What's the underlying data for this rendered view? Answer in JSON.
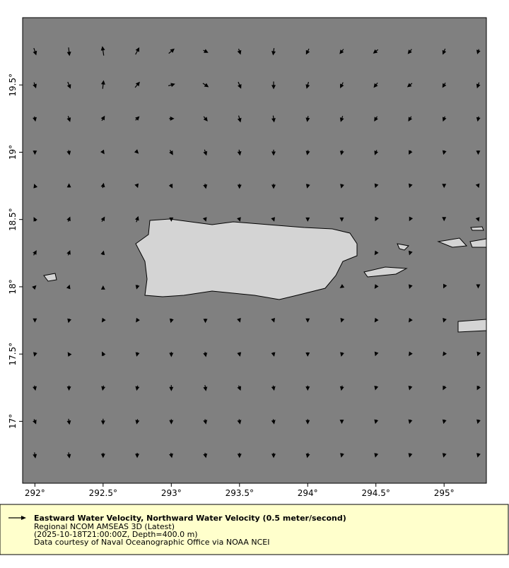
{
  "chart_data": {
    "type": "vector",
    "xlim": [
      291.91,
      295.31
    ],
    "ylim": [
      16.54,
      20.0
    ],
    "xticks": [
      {
        "value": 292,
        "label": "292°"
      },
      {
        "value": 292.5,
        "label": "292.5°"
      },
      {
        "value": 293,
        "label": "293°"
      },
      {
        "value": 293.5,
        "label": "293.5°"
      },
      {
        "value": 294,
        "label": "294°"
      },
      {
        "value": 294.5,
        "label": "294.5°"
      },
      {
        "value": 295,
        "label": "295°"
      }
    ],
    "yticks": [
      {
        "value": 17,
        "label": "17°"
      },
      {
        "value": 17.5,
        "label": "17.5°"
      },
      {
        "value": 18,
        "label": "18°"
      },
      {
        "value": 18.5,
        "label": "18.5°"
      },
      {
        "value": 19,
        "label": "19°"
      },
      {
        "value": 19.5,
        "label": "19.5°"
      }
    ],
    "color": "#000000",
    "vectors": {
      "lon": [
        292.0,
        292.25,
        292.5,
        292.75,
        293.0,
        293.25,
        293.5,
        293.75,
        294.0,
        294.25,
        294.5,
        294.75,
        295.0,
        295.25
      ],
      "lat": [
        19.75,
        19.5,
        19.25,
        19.0,
        18.75,
        18.5,
        18.25,
        18.0,
        17.75,
        17.5,
        17.25,
        17.0,
        16.75
      ],
      "u": [
        [
          0.05,
          0.02,
          -0.03,
          0.08,
          0.12,
          0.1,
          0.04,
          -0.02,
          -0.06,
          -0.08,
          -0.1,
          -0.08,
          -0.05,
          -0.03
        ],
        [
          0.04,
          0.06,
          0.02,
          0.1,
          0.14,
          0.12,
          0.06,
          0.0,
          -0.04,
          -0.06,
          -0.08,
          -0.1,
          -0.06,
          -0.04
        ],
        [
          0.02,
          0.04,
          0.06,
          0.08,
          0.1,
          0.08,
          0.04,
          0.02,
          -0.02,
          -0.04,
          -0.06,
          -0.06,
          -0.04,
          -0.02
        ],
        [
          0.0,
          0.02,
          0.04,
          0.04,
          0.06,
          0.04,
          0.02,
          0.0,
          -0.02,
          -0.02,
          -0.04,
          -0.04,
          -0.02,
          0.0
        ],
        [
          -0.02,
          0.0,
          0.02,
          0.02,
          0.04,
          0.02,
          0.0,
          0.0,
          -0.02,
          -0.02,
          -0.02,
          -0.02,
          0.0,
          0.02
        ],
        [
          -0.04,
          0.04,
          0.06,
          0.04,
          0.0,
          0.02,
          0.02,
          0.02,
          0.0,
          0.0,
          -0.02,
          -0.02,
          0.0,
          0.02
        ],
        [
          0.06,
          0.04,
          0.02,
          null,
          null,
          null,
          null,
          null,
          null,
          null,
          -0.04,
          -0.02,
          null,
          null
        ],
        [
          0.04,
          0.02,
          0.0,
          -0.02,
          null,
          null,
          null,
          null,
          null,
          -0.06,
          -0.04,
          -0.02,
          -0.02,
          0.0
        ],
        [
          0.0,
          -0.02,
          -0.04,
          -0.04,
          -0.02,
          0.0,
          0.02,
          0.02,
          0.0,
          -0.02,
          -0.04,
          -0.04,
          -0.02,
          null
        ],
        [
          -0.02,
          -0.04,
          -0.04,
          -0.02,
          0.0,
          0.02,
          0.02,
          0.02,
          0.0,
          -0.02,
          -0.02,
          -0.04,
          -0.04,
          -0.02
        ],
        [
          0.02,
          0.0,
          -0.02,
          -0.02,
          0.0,
          0.02,
          0.04,
          0.02,
          0.0,
          -0.02,
          -0.02,
          -0.02,
          -0.04,
          -0.04
        ],
        [
          0.04,
          0.02,
          0.0,
          -0.02,
          0.0,
          0.02,
          0.02,
          0.02,
          0.0,
          0.0,
          -0.02,
          -0.02,
          -0.02,
          -0.02
        ],
        [
          0.02,
          0.02,
          0.0,
          0.0,
          0.02,
          0.02,
          0.0,
          0.0,
          -0.02,
          -0.02,
          -0.02,
          -0.02,
          -0.02,
          -0.02
        ]
      ],
      "v": [
        [
          -0.15,
          -0.18,
          0.2,
          0.15,
          0.1,
          -0.05,
          -0.12,
          -0.15,
          -0.12,
          -0.1,
          -0.08,
          -0.1,
          -0.12,
          -0.1
        ],
        [
          -0.12,
          -0.14,
          0.18,
          0.12,
          0.04,
          -0.08,
          -0.14,
          -0.16,
          -0.14,
          -0.12,
          -0.1,
          -0.08,
          -0.1,
          -0.12
        ],
        [
          -0.1,
          -0.12,
          0.1,
          0.08,
          0.0,
          -0.1,
          -0.14,
          -0.14,
          -0.12,
          -0.12,
          -0.1,
          -0.1,
          -0.1,
          -0.1
        ],
        [
          -0.08,
          -0.1,
          -0.06,
          -0.04,
          -0.1,
          -0.12,
          -0.12,
          -0.12,
          -0.1,
          -0.1,
          -0.1,
          -0.08,
          -0.08,
          -0.08
        ],
        [
          0.06,
          0.08,
          0.1,
          -0.06,
          -0.08,
          -0.1,
          -0.1,
          -0.1,
          -0.08,
          -0.08,
          -0.06,
          -0.06,
          -0.06,
          -0.06
        ],
        [
          0.08,
          0.1,
          0.1,
          0.12,
          -0.06,
          -0.06,
          -0.06,
          -0.06,
          -0.06,
          -0.06,
          -0.04,
          -0.04,
          -0.04,
          -0.06
        ],
        [
          0.1,
          0.1,
          0.08,
          null,
          null,
          null,
          null,
          null,
          null,
          null,
          -0.06,
          -0.06,
          null,
          null
        ],
        [
          0.04,
          0.06,
          0.02,
          -0.08,
          null,
          null,
          null,
          null,
          null,
          -0.04,
          -0.06,
          -0.06,
          -0.04,
          -0.04
        ],
        [
          -0.06,
          -0.08,
          -0.06,
          -0.06,
          -0.08,
          -0.08,
          -0.06,
          -0.06,
          -0.06,
          -0.06,
          -0.06,
          -0.06,
          -0.06,
          null
        ],
        [
          -0.08,
          0.06,
          0.08,
          -0.08,
          -0.1,
          -0.1,
          -0.08,
          -0.08,
          -0.08,
          -0.08,
          -0.06,
          -0.06,
          -0.06,
          -0.06
        ],
        [
          -0.1,
          -0.1,
          -0.1,
          -0.1,
          -0.12,
          -0.12,
          -0.1,
          -0.1,
          -0.1,
          -0.1,
          -0.08,
          -0.08,
          -0.08,
          -0.08
        ],
        [
          -0.1,
          -0.12,
          -0.12,
          -0.1,
          -0.1,
          -0.1,
          -0.1,
          -0.1,
          -0.1,
          -0.08,
          -0.08,
          -0.08,
          -0.08,
          -0.08
        ],
        [
          -0.12,
          -0.12,
          -0.1,
          -0.1,
          -0.1,
          -0.1,
          -0.1,
          -0.1,
          -0.1,
          -0.08,
          -0.08,
          -0.08,
          -0.08,
          -0.08
        ]
      ]
    },
    "legend": {
      "title": "Eastward Water Velocity, Northward Water Velocity (0.5 meter/second)",
      "lines": [
        "Regional NCOM AMSEAS 3D (Latest)",
        "(2025-10-18T21:00:00Z, Depth=400.0 m)",
        "Data courtesy of Naval Oceanographic Office via NOAA NCEI"
      ]
    }
  }
}
